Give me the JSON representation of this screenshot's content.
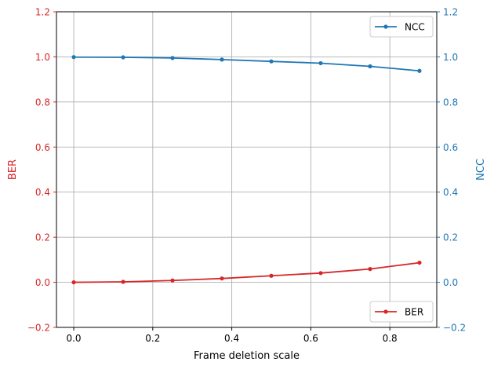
{
  "chart_data": {
    "type": "line",
    "title": "",
    "xlabel": "Frame deletion scale",
    "ylabel_left": "BER",
    "ylabel_right": "NCC",
    "xlim": [
      -0.04375,
      0.91875
    ],
    "ylim_left": [
      -0.2,
      1.2
    ],
    "ylim_right": [
      -0.2,
      1.2
    ],
    "x_ticks": [
      "0.0",
      "0.2",
      "0.4",
      "0.6",
      "0.8"
    ],
    "y_ticks_left": [
      "−0.2",
      "0.0",
      "0.2",
      "0.4",
      "0.6",
      "0.8",
      "1.0",
      "1.2"
    ],
    "y_ticks_right": [
      "−0.2",
      "0.0",
      "0.2",
      "0.4",
      "0.6",
      "0.8",
      "1.0",
      "1.2"
    ],
    "grid": true,
    "x": [
      0.0,
      0.125,
      0.25,
      0.375,
      0.5,
      0.625,
      0.75,
      0.875
    ],
    "series": [
      {
        "name": "BER",
        "axis": "left",
        "color": "#d62728",
        "values": [
          0.0,
          0.002,
          0.008,
          0.017,
          0.029,
          0.041,
          0.059,
          0.087
        ],
        "legend_position": "lower-right"
      },
      {
        "name": "NCC",
        "axis": "right",
        "color": "#1f77b4",
        "values": [
          0.999,
          0.998,
          0.995,
          0.988,
          0.98,
          0.972,
          0.958,
          0.938
        ],
        "legend_position": "upper-right"
      }
    ],
    "colors": {
      "left_axis": "#d62728",
      "right_axis": "#1f77b4",
      "grid": "#b0b0b0",
      "frame": "#000000"
    }
  }
}
